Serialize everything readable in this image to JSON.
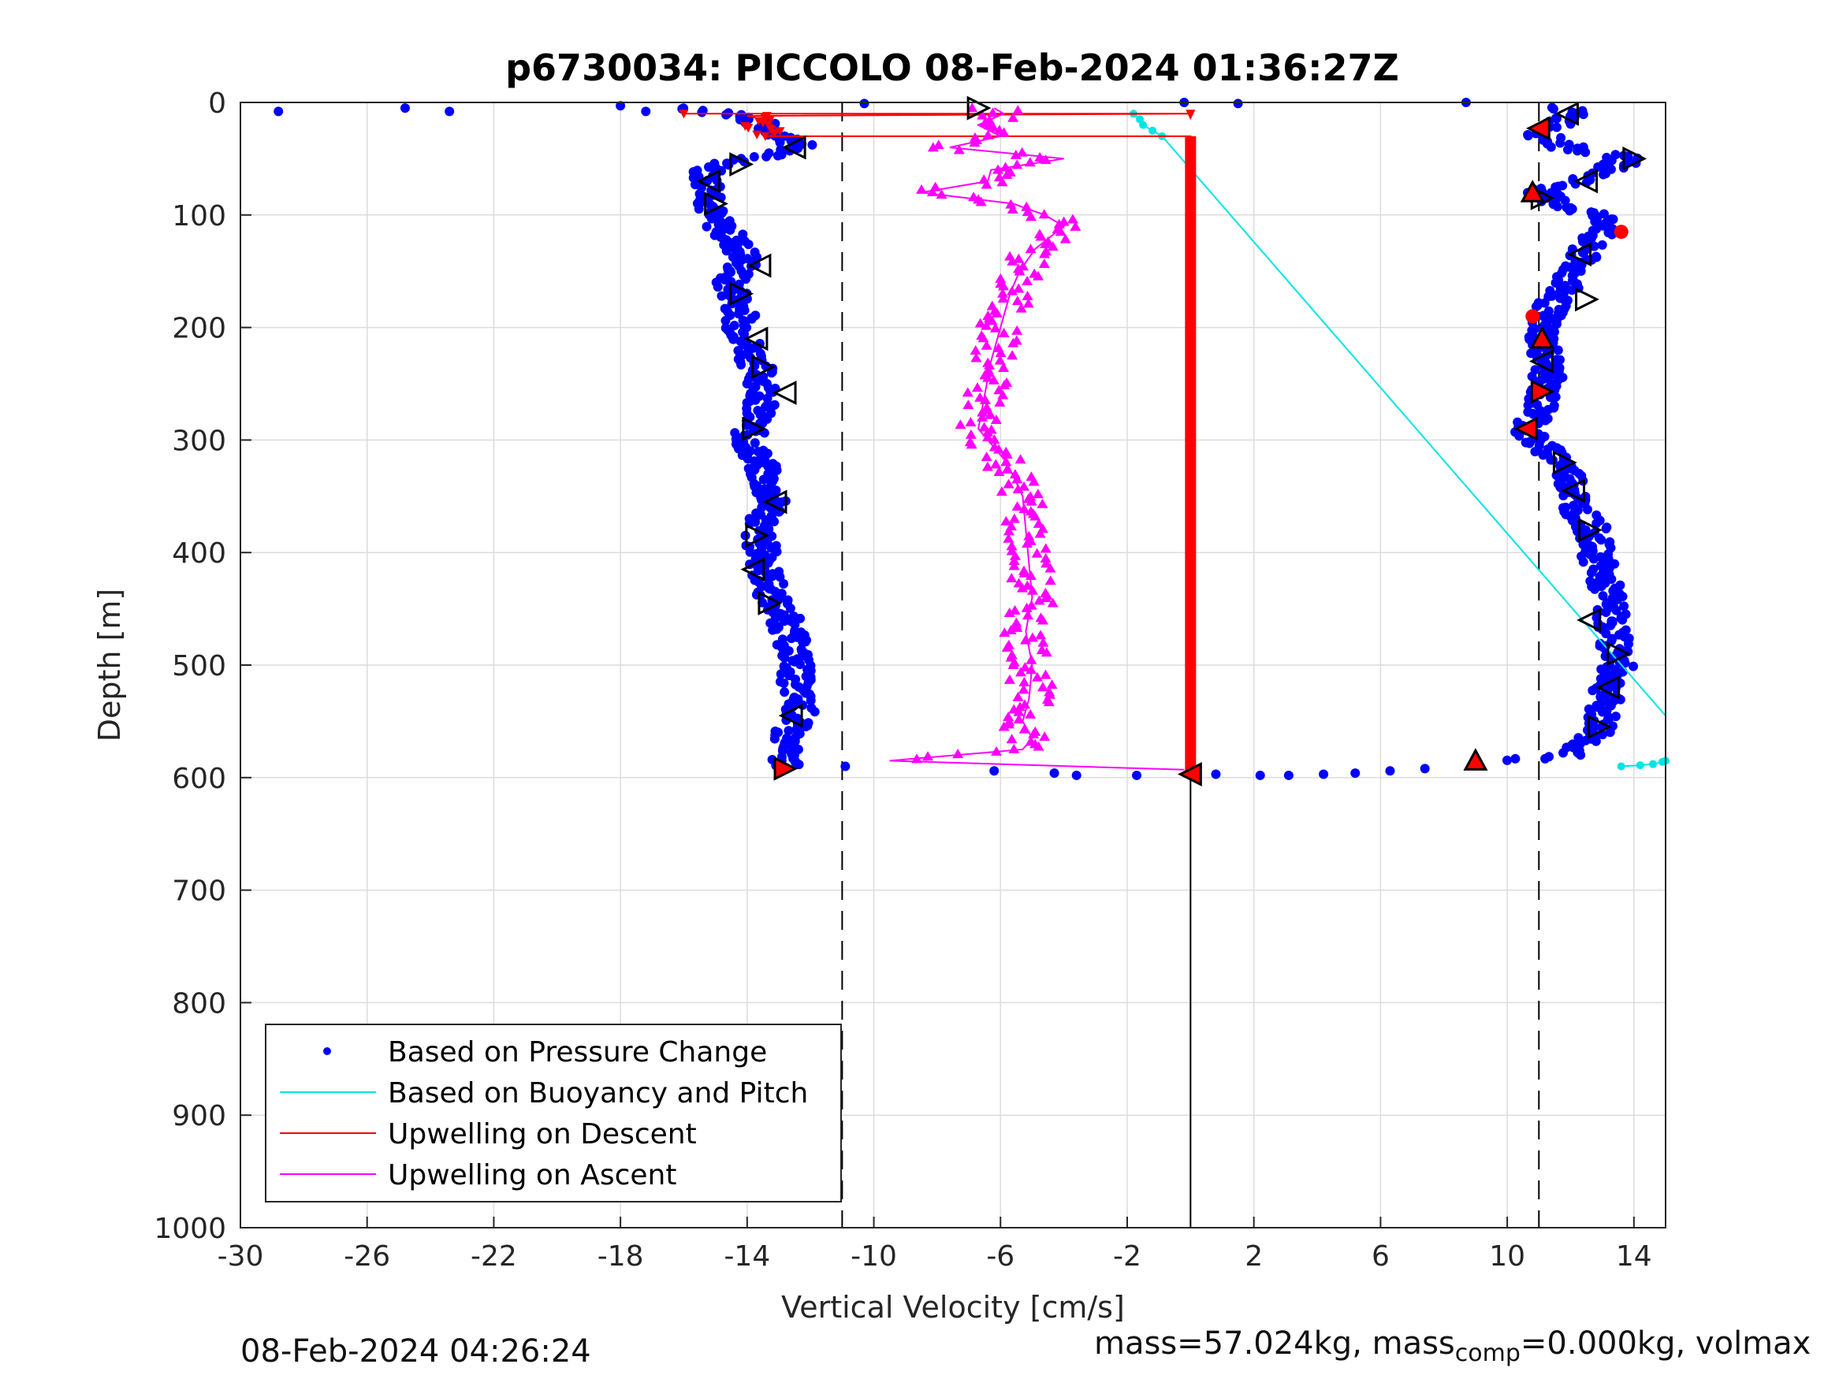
{
  "chart_data": {
    "type": "scatter",
    "title": "p6730034: PICCOLO 08-Feb-2024 01:36:27Z",
    "xlabel": "Vertical Velocity [cm/s]",
    "ylabel": "Depth [m]",
    "xlim": [
      -30,
      15
    ],
    "ylim": [
      0,
      1000
    ],
    "y_reversed": true,
    "grid": true,
    "x_ticks": [
      -30,
      -26,
      -22,
      -18,
      -14,
      -10,
      -6,
      -2,
      2,
      6,
      10,
      14
    ],
    "y_ticks": [
      0,
      100,
      200,
      300,
      400,
      500,
      600,
      700,
      800,
      900,
      1000
    ],
    "reference_lines": {
      "dashed_x": [
        -11,
        11
      ],
      "solid_x": [
        0
      ]
    },
    "legend": {
      "location": "bottom-left",
      "entries": [
        {
          "label": "Based on Pressure Change",
          "color": "#0000ff",
          "style": "dot"
        },
        {
          "label": "Based on Buoyancy and Pitch",
          "color": "#00e5e5",
          "style": "line"
        },
        {
          "label": "Upwelling on Descent",
          "color": "#ff0000",
          "style": "line"
        },
        {
          "label": "Upwelling on Ascent",
          "color": "#ff00ff",
          "style": "line"
        }
      ]
    },
    "series": [
      {
        "name": "Based on Pressure Change",
        "color": "#0000ff",
        "description_side": "descent",
        "depth": [
          5,
          10,
          20,
          30,
          40,
          50,
          60,
          70,
          80,
          90,
          100,
          120,
          140,
          160,
          180,
          200,
          220,
          240,
          260,
          280,
          300,
          320,
          340,
          360,
          380,
          400,
          420,
          440,
          460,
          480,
          500,
          520,
          540,
          560,
          580,
          590
        ],
        "velocity": [
          -16,
          -14.5,
          -13.5,
          -12.8,
          -12.3,
          -14,
          -15.2,
          -15.3,
          -15,
          -15.1,
          -15.2,
          -14.5,
          -14,
          -14.6,
          -14.2,
          -14.2,
          -13.9,
          -13.6,
          -13.4,
          -13.8,
          -14,
          -13.6,
          -13.4,
          -13.2,
          -13.7,
          -13.5,
          -13.4,
          -13.2,
          -12.8,
          -12.6,
          -12.4,
          -12.5,
          -12.3,
          -12.7,
          -12.9,
          -12.6
        ]
      },
      {
        "name": "Based on Pressure Change",
        "color": "#0000ff",
        "description_side": "ascent",
        "depth": [
          585,
          580,
          560,
          540,
          520,
          500,
          480,
          460,
          440,
          420,
          400,
          380,
          360,
          340,
          320,
          300,
          290,
          280,
          260,
          240,
          220,
          200,
          180,
          160,
          140,
          120,
          110,
          100,
          90,
          80,
          70,
          60,
          50,
          40,
          30,
          20,
          10,
          5
        ],
        "velocity": [
          9.5,
          12,
          12.9,
          13,
          13.2,
          13.5,
          13.4,
          13.3,
          13.2,
          13,
          12.8,
          12.7,
          12.2,
          12.1,
          11.8,
          10.8,
          10.6,
          11,
          11.1,
          11.3,
          11.2,
          11.1,
          11.4,
          11.9,
          12.3,
          12.6,
          13.4,
          12.8,
          11.6,
          11,
          12.3,
          13.2,
          13.8,
          11.9,
          11.1,
          11.6,
          12,
          11.8
        ]
      },
      {
        "name": "Based on Pressure Change",
        "color": "#0000ff",
        "description_side": "surface-and-bottom",
        "depth": [
          8,
          5,
          8,
          3,
          8,
          1,
          1,
          0,
          0,
          590,
          594,
          596,
          598,
          598,
          597,
          598,
          598,
          597,
          596,
          594,
          592
        ],
        "velocity": [
          -28.8,
          -24.8,
          -23.4,
          -18,
          -17.2,
          -10.3,
          1.5,
          8.7,
          -0.2,
          -10.9,
          -6.2,
          -4.3,
          -3.6,
          -1.7,
          0.8,
          2.2,
          3.1,
          4.2,
          5.2,
          6.3,
          7.4
        ]
      },
      {
        "name": "Based on Buoyancy and Pitch",
        "color": "#00e5e5",
        "depth": [
          10,
          15,
          20,
          25,
          30,
          545
        ],
        "velocity": [
          -1.8,
          -1.6,
          -1.5,
          -1.2,
          -0.9,
          15
        ],
        "extra_points": {
          "depth": [
            590,
            589,
            588,
            586,
            585
          ],
          "velocity": [
            13.6,
            14.2,
            14.6,
            14.9,
            15
          ]
        }
      },
      {
        "name": "Upwelling on Descent",
        "color": "#ff0000",
        "depth": [
          10,
          10,
          12,
          15,
          20,
          25,
          30,
          30,
          100,
          200,
          300,
          400,
          500,
          590,
          597
        ],
        "velocity": [
          -16,
          0,
          -14,
          -13.5,
          -13.2,
          -13,
          -13.3,
          0,
          0,
          0,
          0,
          0,
          0,
          0,
          0
        ]
      },
      {
        "name": "Upwelling on Ascent",
        "color": "#ff00ff",
        "depth": [
          593,
          585,
          575,
          565,
          550,
          530,
          500,
          470,
          440,
          410,
          380,
          350,
          320,
          290,
          260,
          230,
          200,
          170,
          150,
          130,
          110,
          100,
          90,
          80,
          70,
          60,
          50,
          40,
          30,
          20,
          10,
          5
        ],
        "velocity": [
          -0.2,
          -9.5,
          -5.3,
          -5,
          -5.3,
          -5.1,
          -5,
          -5.2,
          -5,
          -5.1,
          -5.2,
          -5.3,
          -5.8,
          -6.7,
          -6.5,
          -6.3,
          -6,
          -5.7,
          -5.4,
          -4.9,
          -4,
          -4.6,
          -5.6,
          -8.5,
          -6.4,
          -6.3,
          -4,
          -7.6,
          -6,
          -6.7,
          -5.9,
          -6.2
        ]
      }
    ],
    "markers": {
      "open_triangles_descent": {
        "depth": [
          5,
          40,
          55,
          70,
          90,
          145,
          170,
          210,
          235,
          258,
          290,
          355,
          385,
          415,
          445,
          545
        ],
        "velocity": [
          -6.7,
          -12.5,
          -14.2,
          -15.2,
          -15,
          -13.6,
          -14.2,
          -13.7,
          -13.5,
          -12.8,
          -13.8,
          -13.1,
          -13.7,
          -13.8,
          -13.3,
          -12.6
        ]
      },
      "open_triangles_ascent": {
        "depth": [
          10,
          50,
          70,
          85,
          135,
          175,
          230,
          320,
          345,
          380,
          460,
          490,
          520,
          555
        ],
        "velocity": [
          11.9,
          14,
          12.5,
          11.1,
          12.3,
          12.5,
          11.1,
          11.8,
          12.1,
          12.6,
          12.6,
          13.5,
          13.2,
          12.9
        ]
      },
      "filled_red_markers": {
        "depth": [
          23,
          80,
          115,
          190,
          210,
          257,
          290,
          585,
          592,
          597
        ],
        "velocity": [
          11,
          10.8,
          13.6,
          10.8,
          11.1,
          11.1,
          10.6,
          9,
          -12.8,
          0
        ]
      }
    }
  },
  "footer": {
    "timestamp": "08-Feb-2024 04:26:24",
    "mass_text": "mass=57.024kg, mass",
    "mass_sub": "comp",
    "mass_rest": "=0.000kg, volmax"
  }
}
